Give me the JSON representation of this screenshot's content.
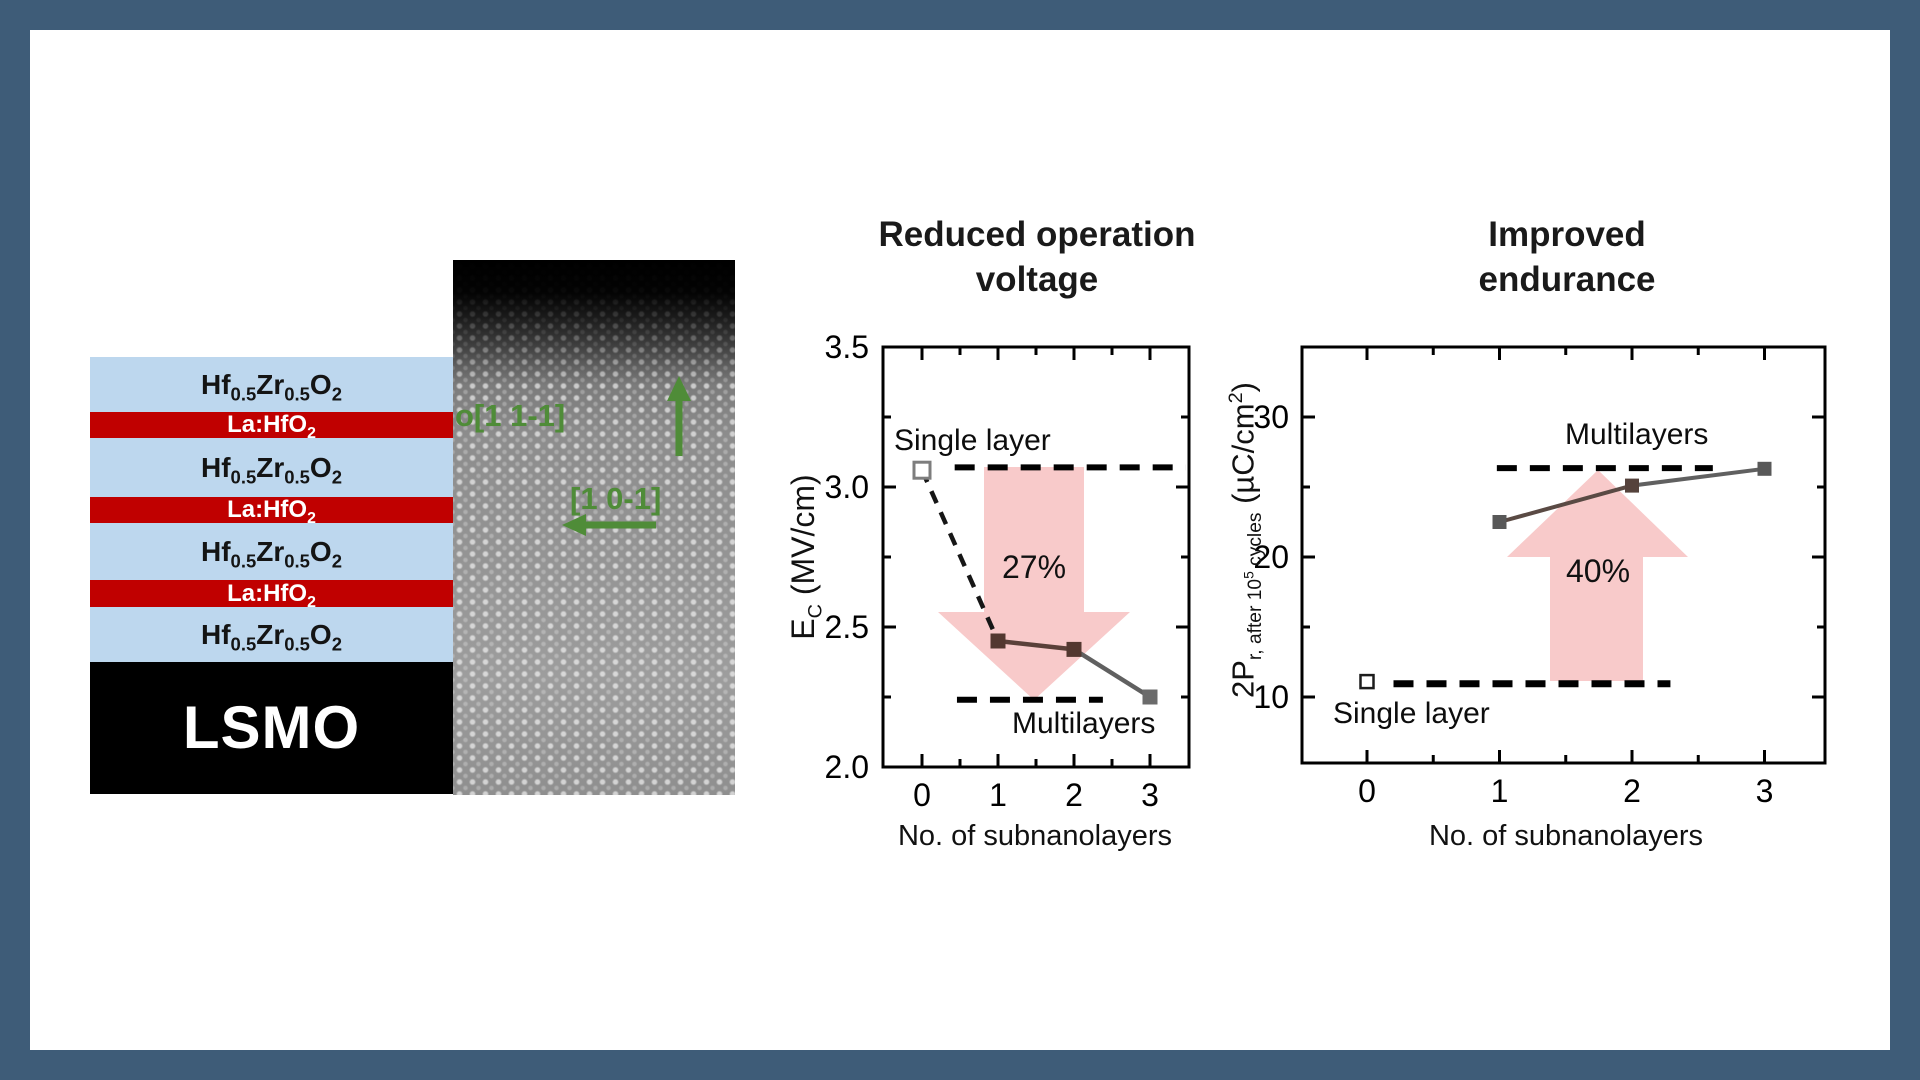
{
  "figure": {
    "stack": {
      "colors": {
        "hzo": "#bdd7ee",
        "lho": "#c00000",
        "substrate": "#000000"
      },
      "layers": [
        {
          "kind": "hzo",
          "label_html": "Hf<sub>0.5</sub>Zr<sub>0.5</sub>O<sub>2</sub>"
        },
        {
          "kind": "lho",
          "label_html": "La:HfO<sub>2</sub>"
        },
        {
          "kind": "hzo",
          "label_html": "Hf<sub>0.5</sub>Zr<sub>0.5</sub>O<sub>2</sub>"
        },
        {
          "kind": "lho",
          "label_html": "La:HfO<sub>2</sub>"
        },
        {
          "kind": "hzo",
          "label_html": "Hf<sub>0.5</sub>Zr<sub>0.5</sub>O<sub>2</sub>"
        },
        {
          "kind": "lho",
          "label_html": "La:HfO<sub>2</sub>"
        },
        {
          "kind": "hzo",
          "label_html": "Hf<sub>0.5</sub>Zr<sub>0.5</sub>O<sub>2</sub>"
        },
        {
          "kind": "substrate",
          "label_html": "LSMO"
        }
      ]
    },
    "tem": {
      "accent_green": "#4f8c38",
      "direction_up_label": "o[1 1-1]",
      "direction_left_label": "[1 0-1]"
    }
  },
  "chart_data": [
    {
      "id": "voltage",
      "type": "line",
      "title_lines": [
        "Reduced operation",
        "voltage"
      ],
      "xlabel": "No. of subnanolayers",
      "ylabel_html": "E<sub>C</sub> (MV/cm)",
      "xlim": [
        -0.51,
        3.51
      ],
      "ylim": [
        2.0,
        3.5
      ],
      "x_ticks": [
        0,
        1,
        2,
        3
      ],
      "x_minor": [
        0.5,
        1.5,
        2.5
      ],
      "y_ticks": [
        2.0,
        2.5,
        3.0,
        3.5
      ],
      "y_tick_labels": [
        "2.0",
        "2.5",
        "3.0",
        "3.5"
      ],
      "y_minor": [
        2.25,
        2.75,
        3.25
      ],
      "series": [
        {
          "name": "Single layer",
          "marker": "open-square",
          "line": "dashed",
          "points": [
            [
              0,
              3.06
            ],
            [
              1,
              2.45
            ]
          ],
          "markers_at": [
            0
          ]
        },
        {
          "name": "Multilayers",
          "marker": "filled-square",
          "line": "solid",
          "points": [
            [
              1,
              2.45
            ],
            [
              2,
              2.42
            ],
            [
              3,
              2.25
            ]
          ],
          "seg_colors": [
            "#5a4039",
            "#606060"
          ],
          "marker_colors": [
            "#533830",
            "#533830",
            "#6b6b6b"
          ]
        }
      ],
      "ref_lines": [
        {
          "label": "Single layer",
          "value": 3.07,
          "x_from": 0.43,
          "x_to": 3.47,
          "width": 6
        },
        {
          "label": "Multilayers",
          "value": 2.24,
          "x_from": 0.46,
          "x_to": 2.38,
          "width": 6
        }
      ],
      "arrow": {
        "direction": "down",
        "label": "27%",
        "color": "#f8caca"
      }
    },
    {
      "id": "endurance",
      "type": "line",
      "title_lines": [
        "Improved",
        "endurance"
      ],
      "xlabel": "No. of subnanolayers",
      "ylabel_html": "2P<sub>r, after 10<sup>5</sup> cycles</sub> (µC/cm<sup>2</sup>)",
      "xlim": [
        -0.49,
        3.46
      ],
      "ylim": [
        5.3,
        35
      ],
      "x_ticks": [
        0,
        1,
        2,
        3
      ],
      "x_minor": [
        0.5,
        1.5,
        2.5
      ],
      "y_ticks": [
        10,
        20,
        30
      ],
      "y_tick_labels": [
        "10",
        "20",
        "30"
      ],
      "y_minor": [
        15,
        25,
        35
      ],
      "series": [
        {
          "name": "Single layer",
          "marker": "open-square",
          "line": "none",
          "points": [
            [
              0,
              11.1
            ]
          ],
          "markers_at": [
            0
          ]
        },
        {
          "name": "Multilayers",
          "marker": "filled-square",
          "line": "solid",
          "points": [
            [
              1,
              22.5
            ],
            [
              2,
              25.1
            ],
            [
              3,
              26.3
            ]
          ],
          "seg_colors": [
            "#5a4a44",
            "#606060"
          ],
          "marker_colors": [
            "#585858",
            "#55423c",
            "#585858"
          ]
        }
      ],
      "ref_lines": [
        {
          "label": "Multilayers",
          "value": 26.35,
          "x_from": 0.98,
          "x_to": 2.61,
          "width": 6
        },
        {
          "label": "Single layer",
          "value": 10.95,
          "x_from": 0.2,
          "x_to": 2.29,
          "width": 7
        }
      ],
      "arrow": {
        "direction": "up",
        "label": "40%",
        "color": "#f8caca"
      }
    }
  ]
}
